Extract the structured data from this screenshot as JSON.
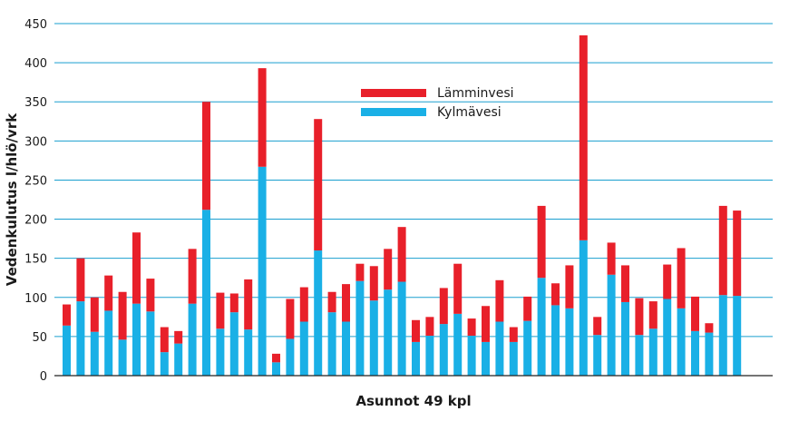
{
  "chart_data": {
    "type": "bar",
    "stacked": true,
    "title": "",
    "ylabel": "Vedenkulutus l/hlö/vrk",
    "xlabel": "Asunnot 49 kpl",
    "ylim": [
      0,
      450
    ],
    "yticks": [
      0,
      50,
      100,
      150,
      200,
      250,
      300,
      350,
      400,
      450
    ],
    "grid": true,
    "legend_position": "top-center",
    "series": [
      {
        "name": "Kylmävesi",
        "color": "#1ab0e6",
        "values": [
          64,
          95,
          56,
          83,
          46,
          92,
          82,
          30,
          41,
          92,
          212,
          60,
          81,
          59,
          267,
          17,
          47,
          69,
          160,
          81,
          69,
          121,
          96,
          110,
          120,
          43,
          51,
          66,
          79,
          51,
          43,
          69,
          43,
          70,
          125,
          90,
          86,
          173,
          52,
          129,
          94,
          52,
          60,
          98,
          86,
          57,
          55,
          103,
          102
        ]
      },
      {
        "name": "Lämminvesi",
        "color": "#e8202a",
        "values": [
          27,
          55,
          44,
          45,
          61,
          91,
          42,
          32,
          16,
          70,
          138,
          46,
          24,
          64,
          126,
          11,
          51,
          44,
          168,
          26,
          48,
          22,
          44,
          52,
          70,
          28,
          24,
          46,
          64,
          22,
          46,
          53,
          19,
          31,
          92,
          28,
          55,
          262,
          23,
          41,
          47,
          47,
          35,
          44,
          77,
          44,
          12,
          114,
          109
        ]
      }
    ]
  }
}
